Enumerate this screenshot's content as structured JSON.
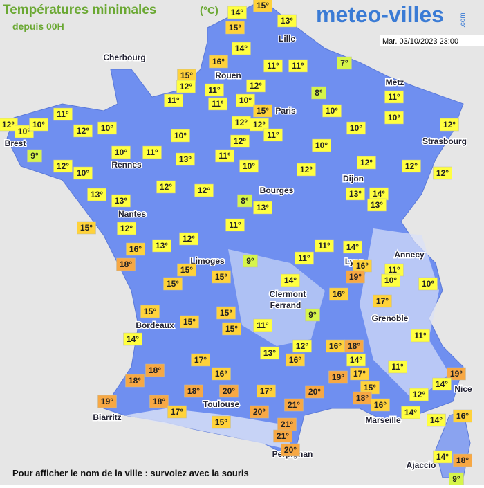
{
  "header": {
    "title": "Températures minimales",
    "unit": "(°C)",
    "subtitle": "depuis 00H",
    "logo": "meteo-villes",
    "logo_suffix": ".com",
    "timestamp": "Mar. 03/10/2023 23:00"
  },
  "cities": [
    "Cherbourg",
    "Lille",
    "Rouen",
    "Paris",
    "Metz",
    "Brest",
    "Strasbourg",
    "Rennes",
    "Dijon",
    "Bourges",
    "Nantes",
    "Annecy",
    "Limoges",
    "Lyon",
    "Clermont",
    "Ferrand",
    "Grenoble",
    "Bordeaux",
    "Nice",
    "Toulouse",
    "Biarritz",
    "Marseille",
    "Perpignan",
    "Ajaccio"
  ],
  "temperatures": [
    "15°",
    "14°",
    "13°",
    "15°",
    "14°",
    "16°",
    "7°",
    "11°",
    "11°",
    "15°",
    "12°",
    "12°",
    "11°",
    "8°",
    "11°",
    "11°",
    "10°",
    "15°",
    "11°",
    "10°",
    "10°",
    "12°",
    "10°",
    "10°",
    "11°",
    "12°",
    "10°",
    "12°",
    "12°",
    "10°",
    "11°",
    "10°",
    "12°",
    "9°",
    "12°",
    "10°",
    "10°",
    "11°",
    "13°",
    "11°",
    "12°",
    "10°",
    "10°",
    "12°",
    "12°",
    "12°",
    "12°",
    "13°",
    "13°",
    "12°",
    "12°",
    "8°",
    "13°",
    "13°",
    "14°",
    "13°",
    "15°",
    "12°",
    "11°",
    "16°",
    "13°",
    "12°",
    "18°",
    "9°",
    "11°",
    "14°",
    "11°",
    "16°",
    "11°",
    "19°",
    "15°",
    "15°",
    "15°",
    "14°",
    "10°",
    "10°",
    "16°",
    "17°",
    "15°",
    "15°",
    "15°",
    "9°",
    "11°",
    "15°",
    "11°",
    "14°",
    "12°",
    "16°",
    "18°",
    "13°",
    "16°",
    "17°",
    "14°",
    "11°",
    "16°",
    "19°",
    "17°",
    "19°",
    "18°",
    "18°",
    "14°",
    "15°",
    "20°",
    "17°",
    "20°",
    "12°",
    "18°",
    "19°",
    "18°",
    "18°",
    "16°",
    "21°",
    "14°",
    "17°",
    "20°",
    "14°",
    "16°",
    "15°",
    "21°",
    "21°",
    "20°",
    "14°",
    "18°",
    "9°"
  ],
  "footer": "Pour afficher le nom de la ville : survolez avec la souris"
}
